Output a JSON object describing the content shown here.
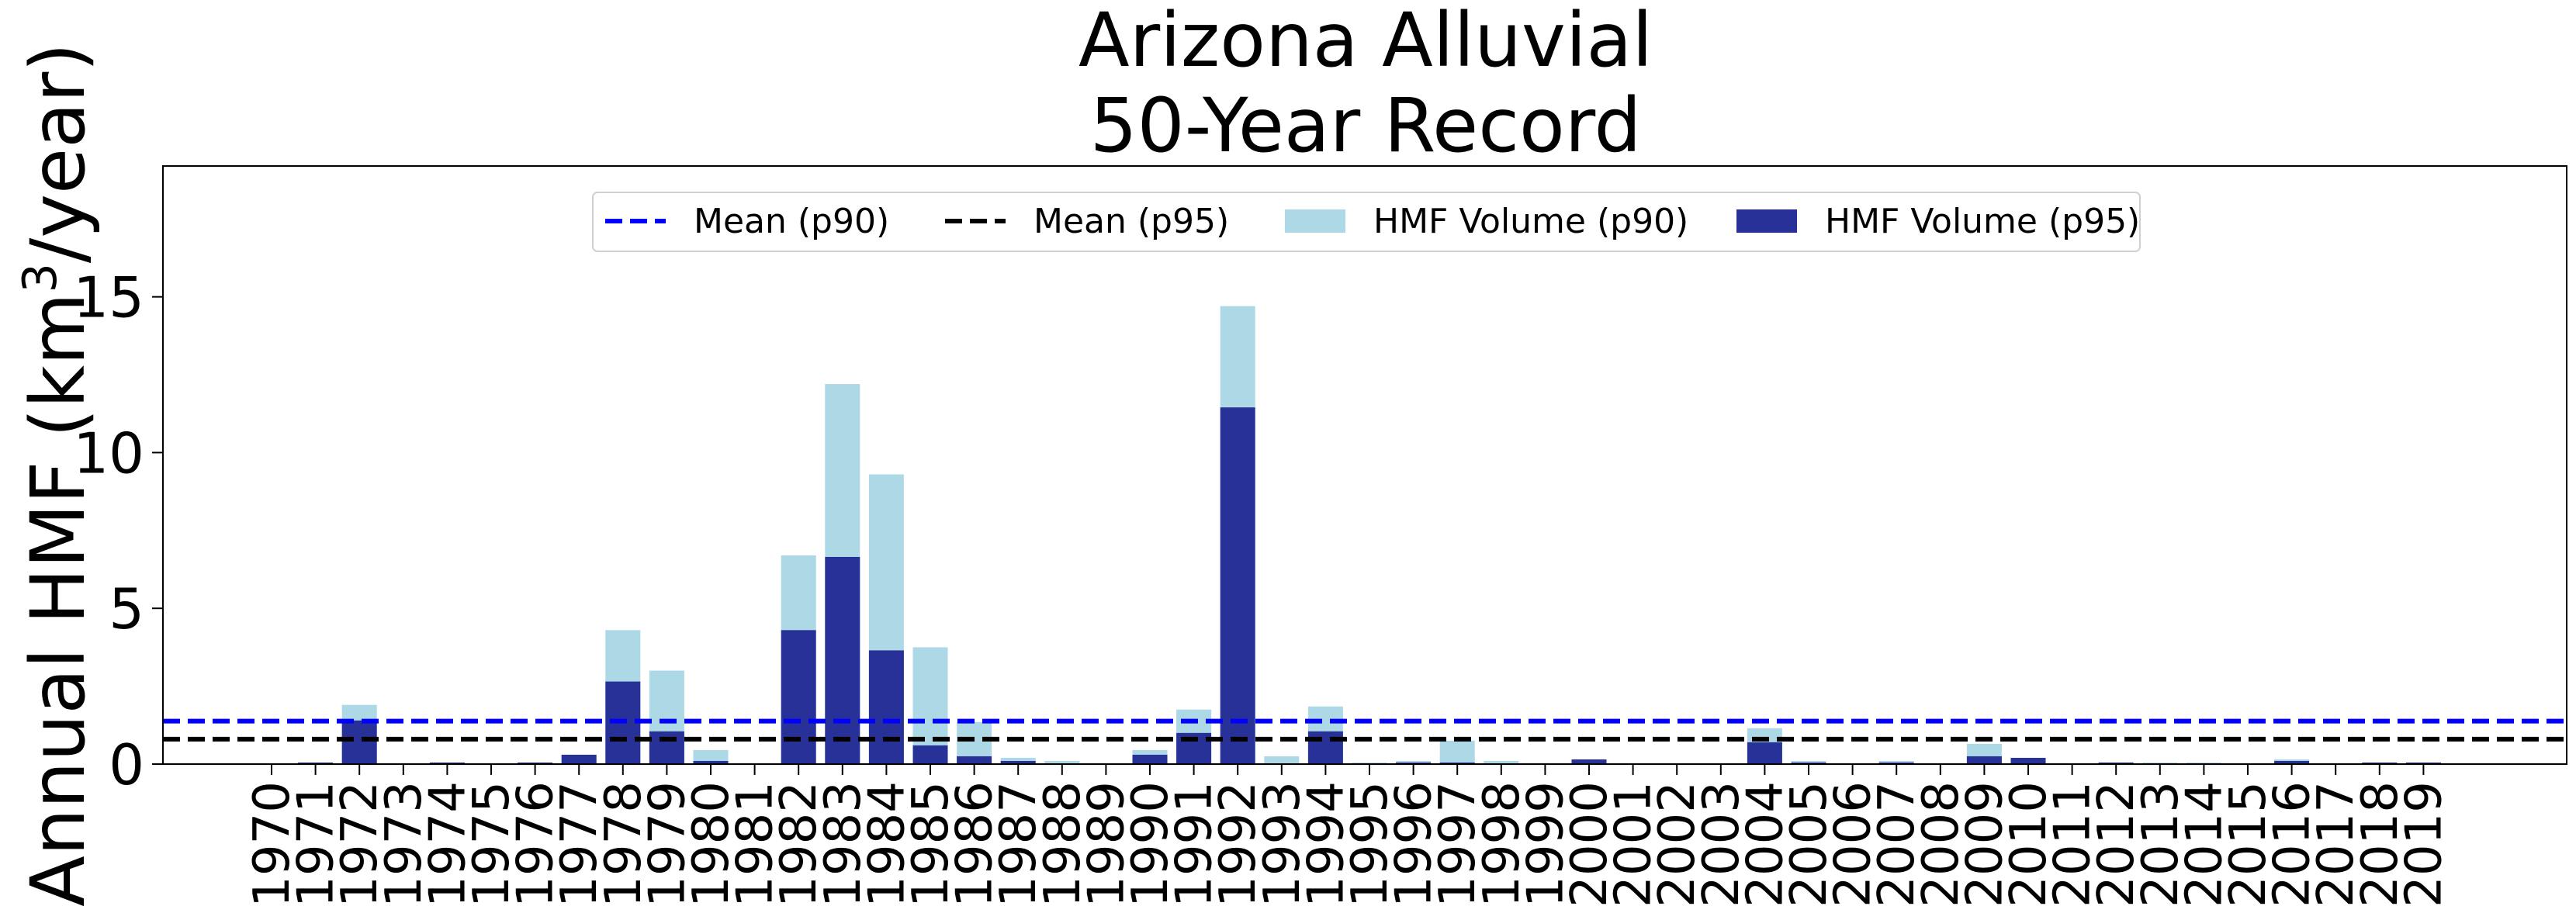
{
  "chart_data": {
    "type": "bar",
    "title": [
      "Arizona Alluvial",
      "50-Year Record"
    ],
    "ylabel": "Annual HMF (km",
    "ylabel_sup": "3",
    "ylabel_suffix": "/year)",
    "xlabel": "",
    "ylim": [
      0,
      19.2
    ],
    "yticks": [
      0,
      5,
      10,
      15
    ],
    "ytick_labels": [
      "0",
      "5",
      "10",
      "15"
    ],
    "grid": false,
    "legend_position": "top-center",
    "categories": [
      "1970",
      "1971",
      "1972",
      "1973",
      "1974",
      "1975",
      "1976",
      "1977",
      "1978",
      "1979",
      "1980",
      "1981",
      "1982",
      "1983",
      "1984",
      "1985",
      "1986",
      "1987",
      "1988",
      "1989",
      "1990",
      "1991",
      "1992",
      "1993",
      "1994",
      "1995",
      "1996",
      "1997",
      "1998",
      "1999",
      "2000",
      "2001",
      "2002",
      "2003",
      "2004",
      "2005",
      "2006",
      "2007",
      "2008",
      "2009",
      "2010",
      "2011",
      "2012",
      "2013",
      "2014",
      "2015",
      "2016",
      "2017",
      "2018",
      "2019"
    ],
    "series": [
      {
        "name": "HMF Volume (p90)",
        "color": "#add8e6",
        "values": [
          0,
          0.05,
          1.9,
          0,
          0.05,
          0,
          0.05,
          0.3,
          4.3,
          3.0,
          0.45,
          0,
          6.7,
          12.2,
          9.3,
          3.75,
          1.35,
          0.2,
          0.1,
          0,
          0.45,
          1.75,
          14.7,
          0.25,
          1.85,
          0.05,
          0.1,
          0.75,
          0.1,
          0,
          0.15,
          0,
          0,
          0,
          1.15,
          0.1,
          0,
          0.1,
          0,
          0.65,
          0.2,
          0,
          0.05,
          0.05,
          0.05,
          0,
          0.15,
          0,
          0.05,
          0.05
        ]
      },
      {
        "name": "HMF Volume (p95)",
        "color": "#283197",
        "values": [
          0,
          0.05,
          1.4,
          0,
          0.05,
          0,
          0.05,
          0.3,
          2.65,
          1.05,
          0.1,
          0,
          4.3,
          6.65,
          3.65,
          0.6,
          0.25,
          0.1,
          0,
          0,
          0.3,
          1.0,
          11.45,
          0,
          1.05,
          0,
          0.05,
          0.05,
          0,
          0,
          0.15,
          0,
          0,
          0,
          0.7,
          0.05,
          0,
          0.05,
          0,
          0.25,
          0.2,
          0,
          0.05,
          0,
          0,
          0,
          0.1,
          0,
          0.05,
          0.05
        ]
      }
    ],
    "mean_lines": [
      {
        "name": "Mean (p90)",
        "value": 1.38,
        "color": "#0000ff"
      },
      {
        "name": "Mean (p95)",
        "value": 0.8,
        "color": "#000000"
      }
    ]
  }
}
